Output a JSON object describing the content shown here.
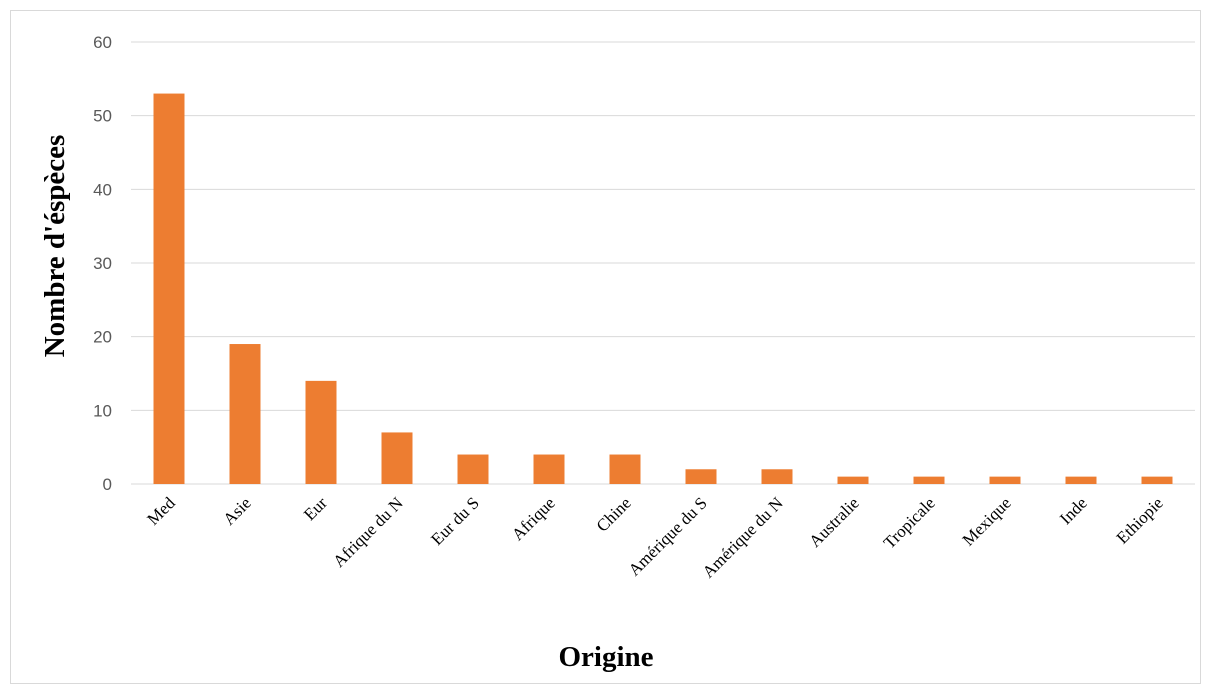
{
  "chart_data": {
    "type": "bar",
    "categories": [
      "Med",
      "Asie",
      "Eur",
      "Afrique du N",
      "Eur du S",
      "Afrique",
      "Chine",
      "Amérique du S",
      "Amérique du N",
      "Australie",
      "Tropicale",
      "Mexique",
      "Inde",
      "Ethiopie"
    ],
    "values": [
      53,
      19,
      14,
      7,
      4,
      4,
      4,
      2,
      2,
      1,
      1,
      1,
      1,
      1
    ],
    "xlabel": "Origine",
    "ylabel": "Nombre d'éspèces",
    "ylim": [
      0,
      60
    ],
    "yticks": [
      "0",
      "10",
      "20",
      "30",
      "40",
      "50",
      "60"
    ],
    "grid": true,
    "legend": "none",
    "bar_color": "#ed7d31"
  }
}
